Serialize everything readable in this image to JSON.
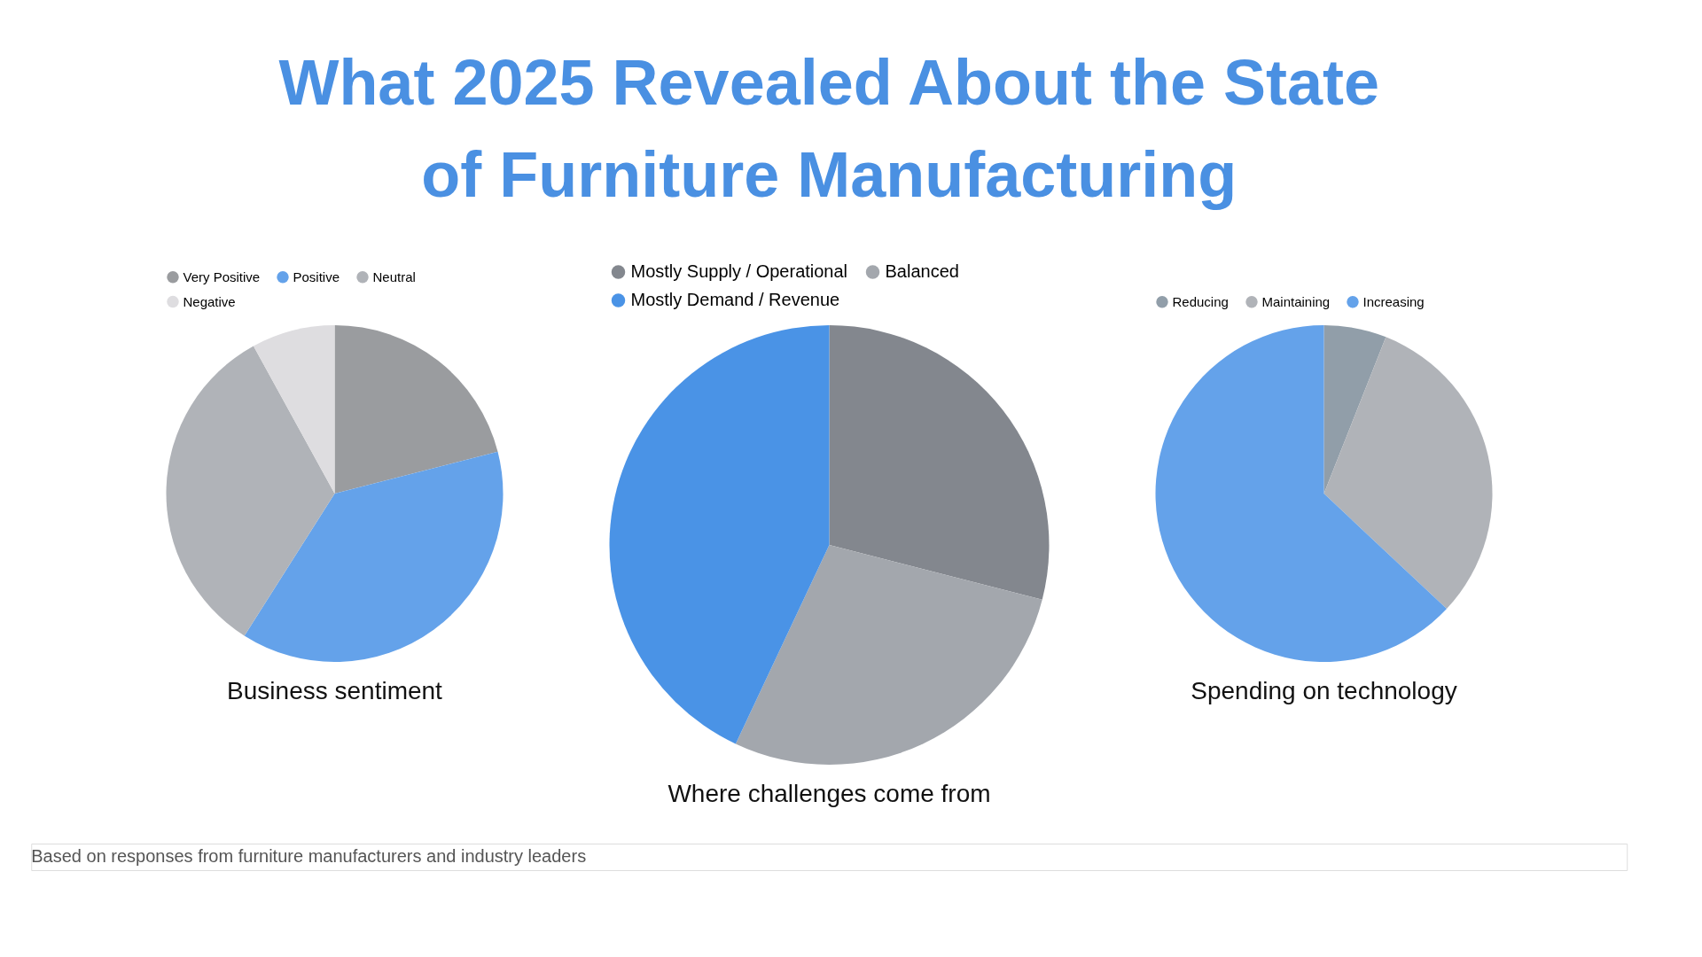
{
  "chart_data": [
    {
      "type": "other",
      "title": "What 2025 Revealed About the State of Furniture Manufacturing",
      "annotations": [
        "Based on responses from furniture manufacturers and industry leaders"
      ]
    },
    {
      "type": "pie",
      "title": "Business sentiment",
      "categories": [
        "Very Positive",
        "Positive",
        "Neutral",
        "Negative"
      ],
      "values": [
        21,
        38,
        33,
        8
      ],
      "colors": [
        "#9a9c9f",
        "#64a2ea",
        "#b0b3b8",
        "#dedde0"
      ],
      "legend": "top"
    },
    {
      "type": "pie",
      "title": "Where challenges come from",
      "categories": [
        "Mostly Supply / Operational",
        "Balanced",
        "Mostly Demand / Revenue"
      ],
      "values": [
        29,
        28,
        43
      ],
      "colors": [
        "#83878e",
        "#a3a7ad",
        "#4a93e6"
      ],
      "legend": "top"
    },
    {
      "type": "pie",
      "title": "Spending on technology",
      "categories": [
        "Reducing",
        "Maintaining",
        "Increasing"
      ],
      "values": [
        6,
        31,
        63
      ],
      "colors": [
        "#919ea9",
        "#b0b3b8",
        "#64a2ea"
      ],
      "legend": "top"
    }
  ]
}
